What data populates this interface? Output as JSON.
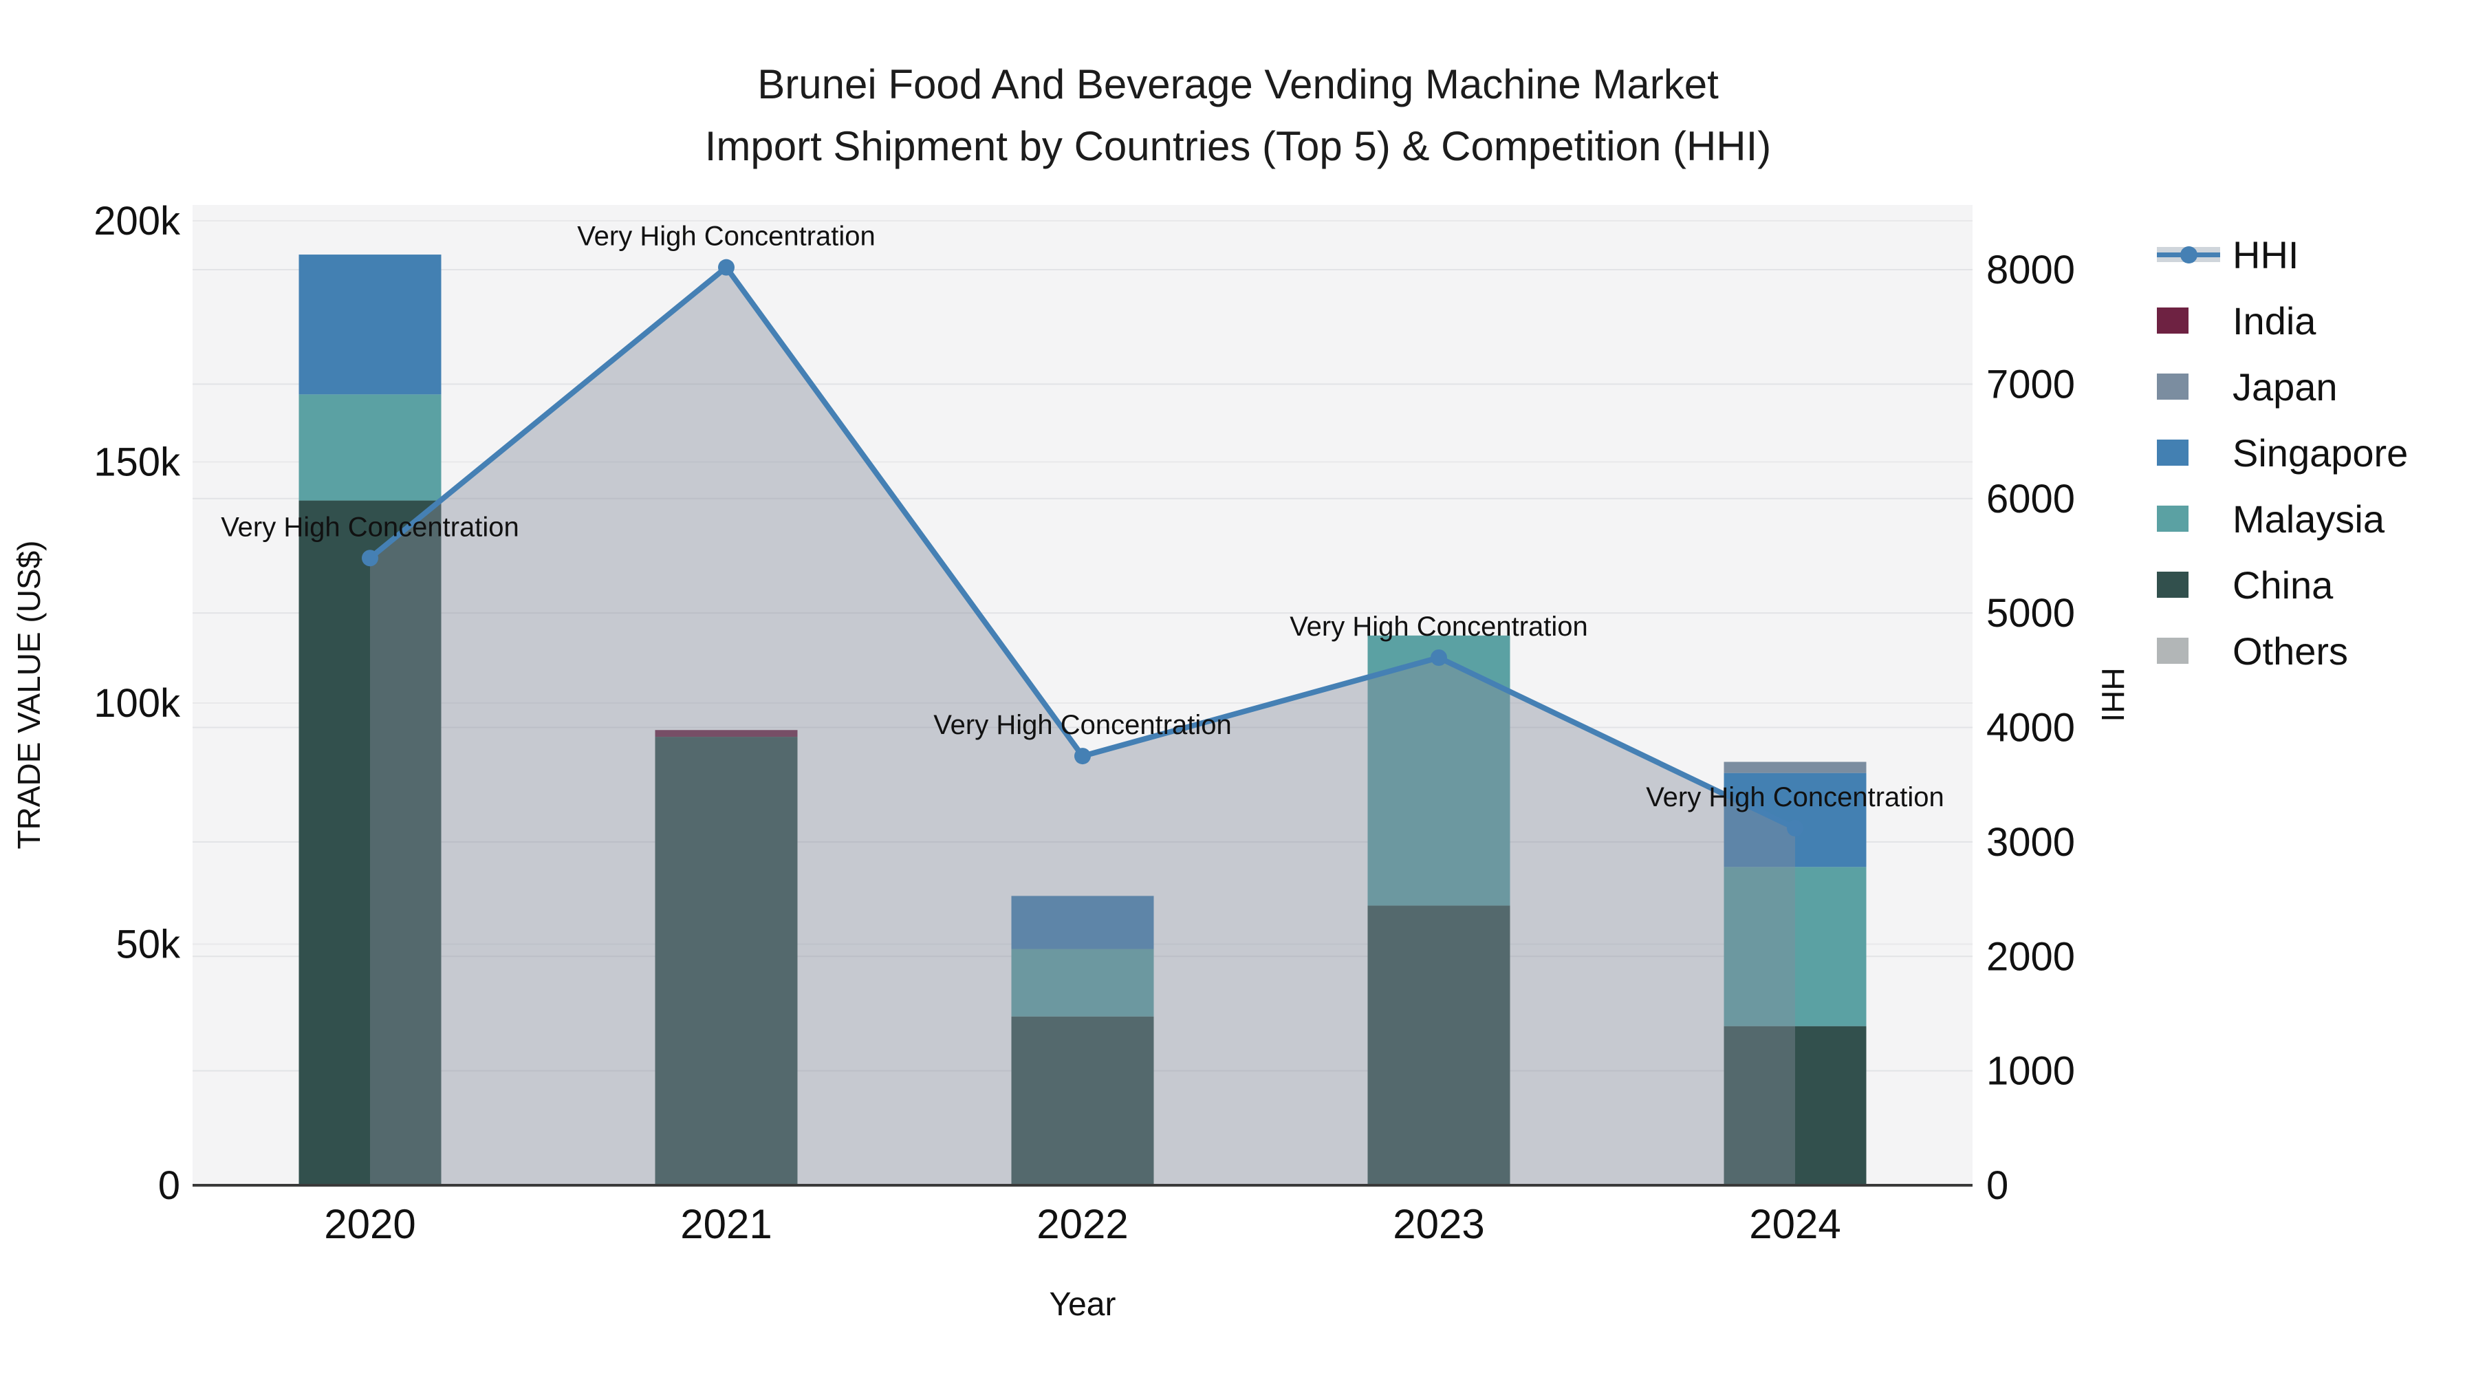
{
  "title": {
    "line1": "Brunei Food And Beverage Vending Machine Market",
    "line2": "Import Shipment by Countries (Top 5) & Competition (HHI)"
  },
  "axes": {
    "y_left": {
      "title": "TRADE VALUE (US$)"
    },
    "y_right": {
      "title": "HHI"
    },
    "x": {
      "title": "Year"
    }
  },
  "legend": [
    {
      "label": "HHI",
      "swatch": "line",
      "color": "#4580b4"
    },
    {
      "label": "India",
      "swatch": "square",
      "color": "#6e2242"
    },
    {
      "label": "Japan",
      "swatch": "square",
      "color": "#7b8da0"
    },
    {
      "label": "Singapore",
      "swatch": "square",
      "color": "#4380b2"
    },
    {
      "label": "Malaysia",
      "swatch": "square",
      "color": "#5ba1a3"
    },
    {
      "label": "China",
      "swatch": "square",
      "color": "#32504d"
    },
    {
      "label": "Others",
      "swatch": "square",
      "color": "#b2b6b7"
    }
  ],
  "chart_data": {
    "type": "combo",
    "categories": [
      "2020",
      "2021",
      "2022",
      "2023",
      "2024"
    ],
    "bar_stack_order_bottom_to_top": [
      "China",
      "Malaysia",
      "Singapore",
      "Japan",
      "India",
      "Others"
    ],
    "series": [
      {
        "name": "India",
        "type": "bar",
        "color": "#6e2242",
        "values": [
          0,
          1400,
          0,
          0,
          0
        ]
      },
      {
        "name": "Japan",
        "type": "bar",
        "color": "#7b8da0",
        "values": [
          0,
          0,
          0,
          0,
          2300
        ]
      },
      {
        "name": "Singapore",
        "type": "bar",
        "color": "#4380b2",
        "values": [
          29000,
          0,
          11000,
          0,
          19500
        ]
      },
      {
        "name": "Malaysia",
        "type": "bar",
        "color": "#5ba1a3",
        "values": [
          22000,
          0,
          14000,
          56000,
          33000
        ]
      },
      {
        "name": "China",
        "type": "bar",
        "color": "#32504d",
        "values": [
          142000,
          93000,
          35000,
          58000,
          33000
        ]
      },
      {
        "name": "Others",
        "type": "bar",
        "color": "#b2b6b7",
        "values": [
          0,
          0,
          0,
          0,
          0
        ]
      },
      {
        "name": "HHI",
        "type": "line",
        "axis": "right",
        "color": "#4580b4",
        "area_color": "rgba(133,142,155,0.41)",
        "values": [
          5480,
          8020,
          3750,
          4610,
          3120
        ]
      }
    ],
    "annotations": [
      {
        "category": "2020",
        "text": "Very High Concentration"
      },
      {
        "category": "2021",
        "text": "Very High Concentration"
      },
      {
        "category": "2022",
        "text": "Very High Concentration"
      },
      {
        "category": "2023",
        "text": "Very High Concentration"
      },
      {
        "category": "2024",
        "text": "Very High Concentration"
      }
    ],
    "y_left_ticks": [
      {
        "value": 0,
        "label": "0"
      },
      {
        "value": 50000,
        "label": "50k"
      },
      {
        "value": 100000,
        "label": "100k"
      },
      {
        "value": 150000,
        "label": "150k"
      },
      {
        "value": 200000,
        "label": "200k"
      }
    ],
    "y_right_ticks": [
      {
        "value": 0,
        "label": "0"
      },
      {
        "value": 1000,
        "label": "1000"
      },
      {
        "value": 2000,
        "label": "2000"
      },
      {
        "value": 3000,
        "label": "3000"
      },
      {
        "value": 4000,
        "label": "4000"
      },
      {
        "value": 5000,
        "label": "5000"
      },
      {
        "value": 6000,
        "label": "6000"
      },
      {
        "value": 7000,
        "label": "7000"
      },
      {
        "value": 8000,
        "label": "8000"
      }
    ],
    "xlabel": "Year",
    "ylabel_left": "TRADE VALUE (US$)",
    "ylabel_right": "HHI",
    "ylim_left": [
      0,
      200000
    ],
    "ylim_right": [
      0,
      8000
    ],
    "grid": true,
    "legend_position": "right"
  }
}
